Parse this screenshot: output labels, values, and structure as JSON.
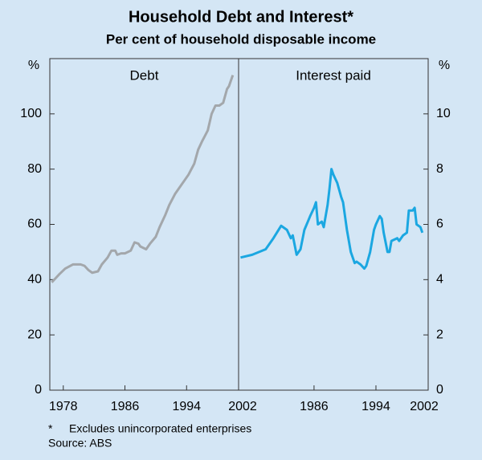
{
  "title": "Household Debt and Interest*",
  "subtitle": "Per cent of household disposable income",
  "chart_data": [
    {
      "type": "line",
      "panel_title": "Debt",
      "y_unit": "%",
      "axis_side": "left",
      "x": [
        1977,
        1977.5,
        1978,
        1978.75,
        1979.75,
        1980.75,
        1981.25,
        1981.75,
        1982.25,
        1983,
        1983.5,
        1984.25,
        1984.75,
        1985.25,
        1985.5,
        1986,
        1986.5,
        1987.25,
        1987.75,
        1988.25,
        1988.5,
        1989.25,
        1989.75,
        1990.5,
        1991,
        1991.75,
        1992.25,
        1993,
        1993.5,
        1994.25,
        1994.75,
        1995.5,
        1996,
        1996.5,
        1997.25,
        1997.75,
        1998.25,
        1998.75,
        1999.25,
        1999.75,
        2000,
        2000.5
      ],
      "series": [
        {
          "color": "#a3a7ab",
          "values": [
            39,
            40.5,
            42,
            44,
            45.5,
            45.5,
            45,
            43.5,
            42.5,
            43,
            45.5,
            48,
            50.5,
            50.5,
            49,
            49.5,
            49.5,
            50.5,
            53.5,
            53,
            52,
            51,
            53,
            55.5,
            59,
            63.5,
            67,
            71,
            73,
            76,
            78,
            82,
            87,
            90,
            94,
            100,
            103,
            103,
            104,
            109,
            110,
            114
          ]
        }
      ],
      "xlim": [
        1976.75,
        2001.25
      ],
      "xticks": [
        {
          "value": 1978.5,
          "label": "1978"
        },
        {
          "value": 1986.5,
          "label": "1986"
        },
        {
          "value": 1994.5,
          "label": "1994"
        },
        {
          "value": 2002.5,
          "label": "2002"
        }
      ],
      "ylim": [
        0,
        120
      ],
      "yticks": [
        0,
        20,
        40,
        60,
        80,
        100
      ]
    },
    {
      "type": "line",
      "panel_title": "Interest paid",
      "y_unit": "%",
      "axis_side": "right",
      "x": [
        1977,
        1978.5,
        1980.25,
        1981.25,
        1982.25,
        1983,
        1983.5,
        1983.75,
        1984.25,
        1984.75,
        1985.25,
        1986,
        1986.5,
        1986.75,
        1987,
        1987.5,
        1987.75,
        1988.25,
        1988.5,
        1988.75,
        1989,
        1989.5,
        1990,
        1990.25,
        1990.75,
        1991.25,
        1991.75,
        1992,
        1992.5,
        1993,
        1993.25,
        1993.75,
        1994.25,
        1994.5,
        1995,
        1995.25,
        1995.5,
        1996,
        1996.25,
        1996.5,
        1997.25,
        1997.5,
        1998,
        1998.5,
        1998.75,
        1999.25,
        1999.5,
        1999.75,
        2000.25,
        2000.5
      ],
      "series": [
        {
          "color": "#1ba7e1",
          "values": [
            4.8,
            4.9,
            5.1,
            5.5,
            5.95,
            5.8,
            5.5,
            5.6,
            4.9,
            5.1,
            5.8,
            6.3,
            6.6,
            6.8,
            6.0,
            6.1,
            5.9,
            6.7,
            7.3,
            8.0,
            7.8,
            7.5,
            7.0,
            6.8,
            5.8,
            5.0,
            4.6,
            4.65,
            4.55,
            4.4,
            4.5,
            5.0,
            5.8,
            6.0,
            6.3,
            6.2,
            5.7,
            5.0,
            5.0,
            5.4,
            5.5,
            5.4,
            5.6,
            5.7,
            6.5,
            6.5,
            6.6,
            6.0,
            5.9,
            5.7
          ]
        }
      ],
      "xlim": [
        1976.75,
        2001.25
      ],
      "xticks": [
        {
          "value": 1986.5,
          "label": "1986"
        },
        {
          "value": 1994.5,
          "label": "1994"
        },
        {
          "value": 2002.5,
          "label": "2002"
        }
      ],
      "ylim": [
        0,
        12
      ],
      "yticks": [
        0,
        2,
        4,
        6,
        8,
        10
      ]
    }
  ],
  "footnote": {
    "marker": "*",
    "text": "Excludes unincorporated enterprises"
  },
  "source": "Source: ABS"
}
